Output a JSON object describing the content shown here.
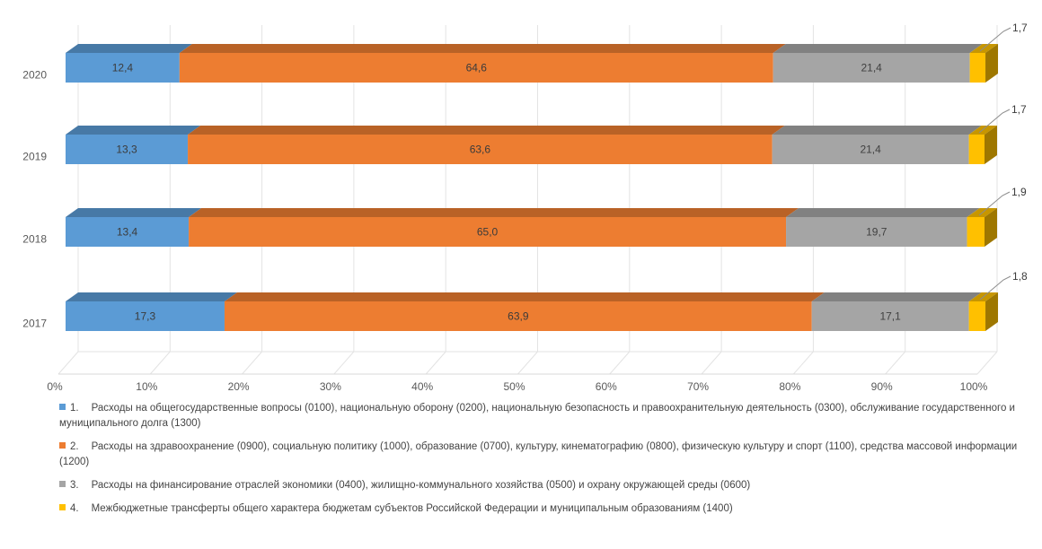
{
  "chart_data": {
    "type": "bar",
    "orientation": "horizontal",
    "stacked": "percent",
    "categories": [
      "2020",
      "2019",
      "2018",
      "2017"
    ],
    "series": [
      {
        "name": "Расходы на общегосударственные вопросы (0100), национальную оборону (0200), национальную безопасность и правоохранительную деятельность (0300), обслуживание государственного и муниципального долга (1300)",
        "number": "1.",
        "color": "#5b9bd5",
        "values": [
          12.4,
          13.3,
          13.4,
          17.3
        ],
        "labels": [
          "12,4",
          "13,3",
          "13,4",
          "17,3"
        ]
      },
      {
        "name": "Расходы на здравоохранение (0900), социальную политику (1000), образование (0700), культуру, кинематографию (0800), физическую культуру и спорт (1100), средства массовой информации (1200)",
        "number": "2.",
        "color": "#ed7d31",
        "values": [
          64.6,
          63.6,
          65.0,
          63.9
        ],
        "labels": [
          "64,6",
          "63,6",
          "65,0",
          "63,9"
        ]
      },
      {
        "name": "Расходы на финансирование отраслей экономики (0400), жилищно-коммунального хозяйства (0500) и охрану окружающей среды (0600)",
        "number": "3.",
        "color": "#a5a5a5",
        "values": [
          21.4,
          21.4,
          19.7,
          17.1
        ],
        "labels": [
          "21,4",
          "21,4",
          "19,7",
          "17,1"
        ]
      },
      {
        "name": "Межбюджетные трансферты общего характера бюджетам субъектов Российской Федерации и муниципальным образованиям (1400)",
        "number": "4.",
        "color": "#ffc000",
        "values": [
          1.7,
          1.7,
          1.9,
          1.8
        ],
        "labels": [
          "1,7",
          "1,7",
          "1,9",
          "1,8"
        ]
      }
    ],
    "x_ticks": [
      "0%",
      "10%",
      "20%",
      "30%",
      "40%",
      "50%",
      "60%",
      "70%",
      "80%",
      "90%",
      "100%"
    ],
    "xlim": [
      0,
      100
    ],
    "grid": true,
    "legend_position": "bottom"
  }
}
